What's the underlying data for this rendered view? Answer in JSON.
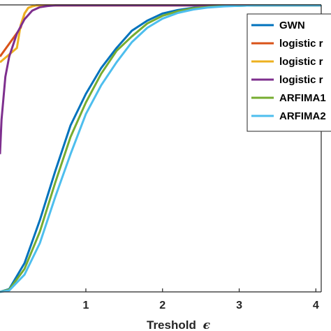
{
  "chart_data": {
    "type": "line",
    "xlabel": "Treshold",
    "xlabel_symbol": "ϵ",
    "ylabel": "",
    "xlim": [
      -0.12,
      4.07
    ],
    "ylim": [
      0,
      1
    ],
    "x_ticks": [
      "1",
      "2",
      "3",
      "4"
    ],
    "x_tick_values": [
      1,
      2,
      3,
      4
    ],
    "grid": false,
    "legend_position": "top-right",
    "series": [
      {
        "name": "GWN",
        "color": "#0072BD",
        "x": [
          -0.12,
          0,
          0.2,
          0.4,
          0.6,
          0.8,
          1.0,
          1.2,
          1.4,
          1.6,
          1.8,
          2.0,
          2.2,
          2.4,
          2.6,
          2.8,
          3.0,
          3.2,
          3.5,
          4.07
        ],
        "y": [
          0.0,
          0.01,
          0.1,
          0.25,
          0.42,
          0.58,
          0.69,
          0.78,
          0.85,
          0.91,
          0.945,
          0.97,
          0.982,
          0.99,
          0.994,
          0.996,
          0.997,
          0.998,
          0.998,
          0.998
        ]
      },
      {
        "name": "logistic r",
        "color": "#D95319",
        "x": [
          -0.12,
          0.15,
          0.2,
          0.25,
          0.3,
          0.35,
          4.07
        ],
        "y": [
          0.82,
          0.92,
          0.97,
          0.99,
          0.995,
          0.998,
          0.998
        ]
      },
      {
        "name": "logistic r",
        "color": "#EDB120",
        "x": [
          -0.12,
          0.1,
          0.15,
          0.2,
          0.25,
          0.3,
          0.35,
          4.07
        ],
        "y": [
          0.8,
          0.85,
          0.93,
          0.97,
          0.99,
          0.995,
          0.998,
          0.998
        ]
      },
      {
        "name": "logistic r",
        "color": "#7E2F8E",
        "x": [
          -0.12,
          -0.1,
          -0.05,
          0.0,
          0.1,
          0.2,
          0.3,
          0.4,
          0.5,
          0.6,
          4.07
        ],
        "y": [
          0.48,
          0.6,
          0.75,
          0.82,
          0.9,
          0.95,
          0.98,
          0.992,
          0.996,
          0.998,
          0.998
        ]
      },
      {
        "name": "ARFIMA1",
        "color": "#77AC30",
        "x": [
          -0.12,
          0,
          0.2,
          0.4,
          0.6,
          0.8,
          1.0,
          1.2,
          1.4,
          1.6,
          1.8,
          2.0,
          2.2,
          2.4,
          2.6,
          2.8,
          3.0,
          3.2,
          3.5,
          4.07
        ],
        "y": [
          0.0,
          0.008,
          0.08,
          0.21,
          0.38,
          0.54,
          0.66,
          0.76,
          0.84,
          0.89,
          0.935,
          0.962,
          0.978,
          0.988,
          0.993,
          0.996,
          0.997,
          0.998,
          0.998,
          0.998
        ]
      },
      {
        "name": "ARFIMA2",
        "color": "#4DBEEE",
        "x": [
          -0.12,
          0,
          0.2,
          0.4,
          0.6,
          0.8,
          1.0,
          1.2,
          1.4,
          1.6,
          1.8,
          2.0,
          2.2,
          2.4,
          2.6,
          2.8,
          3.0,
          3.2,
          3.5,
          4.07
        ],
        "y": [
          0.0,
          0.005,
          0.06,
          0.17,
          0.33,
          0.48,
          0.62,
          0.72,
          0.8,
          0.87,
          0.92,
          0.952,
          0.972,
          0.984,
          0.991,
          0.995,
          0.997,
          0.998,
          0.998,
          0.998
        ]
      }
    ]
  }
}
